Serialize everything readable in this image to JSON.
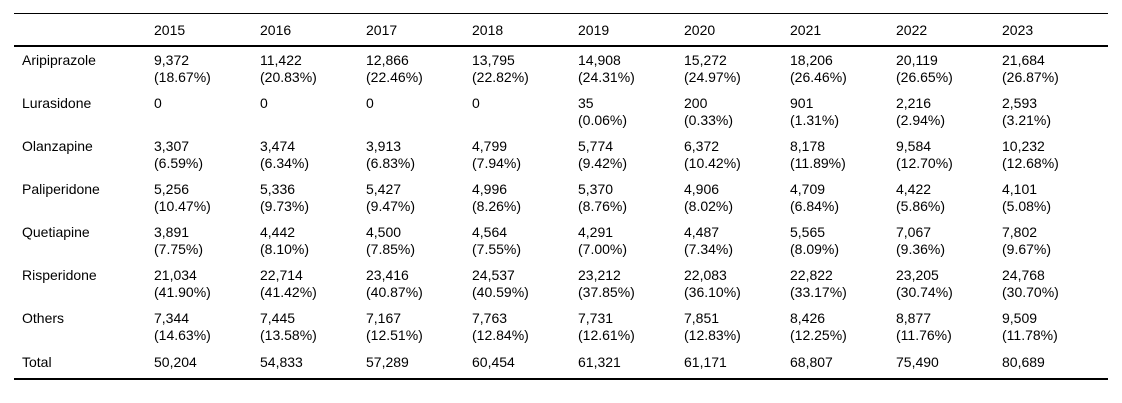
{
  "table": {
    "corner_label": "",
    "years": [
      "2015",
      "2016",
      "2017",
      "2018",
      "2019",
      "2020",
      "2021",
      "2022",
      "2023"
    ],
    "rows": [
      {
        "label": "Aripiprazole",
        "values": [
          "9,372",
          "11,422",
          "12,866",
          "13,795",
          "14,908",
          "15,272",
          "18,206",
          "20,119",
          "21,684"
        ],
        "pcts": [
          "(18.67%)",
          "(20.83%)",
          "(22.46%)",
          "(22.82%)",
          "(24.31%)",
          "(24.97%)",
          "(26.46%)",
          "(26.65%)",
          "(26.87%)"
        ]
      },
      {
        "label": "Lurasidone",
        "values": [
          "0",
          "0",
          "0",
          "0",
          "35",
          "200",
          "901",
          "2,216",
          "2,593"
        ],
        "pcts": [
          "",
          "",
          "",
          "",
          "(0.06%)",
          "(0.33%)",
          "(1.31%)",
          "(2.94%)",
          "(3.21%)"
        ]
      },
      {
        "label": "Olanzapine",
        "values": [
          "3,307",
          "3,474",
          "3,913",
          "4,799",
          "5,774",
          "6,372",
          "8,178",
          "9,584",
          "10,232"
        ],
        "pcts": [
          "(6.59%)",
          "(6.34%)",
          "(6.83%)",
          "(7.94%)",
          "(9.42%)",
          "(10.42%)",
          "(11.89%)",
          "(12.70%)",
          "(12.68%)"
        ]
      },
      {
        "label": "Paliperidone",
        "values": [
          "5,256",
          "5,336",
          "5,427",
          "4,996",
          "5,370",
          "4,906",
          "4,709",
          "4,422",
          "4,101"
        ],
        "pcts": [
          "(10.47%)",
          "(9.73%)",
          "(9.47%)",
          "(8.26%)",
          "(8.76%)",
          "(8.02%)",
          "(6.84%)",
          "(5.86%)",
          "(5.08%)"
        ]
      },
      {
        "label": "Quetiapine",
        "values": [
          "3,891",
          "4,442",
          "4,500",
          "4,564",
          "4,291",
          "4,487",
          "5,565",
          "7,067",
          "7,802"
        ],
        "pcts": [
          "(7.75%)",
          "(8.10%)",
          "(7.85%)",
          "(7.55%)",
          "(7.00%)",
          "(7.34%)",
          "(8.09%)",
          "(9.36%)",
          "(9.67%)"
        ]
      },
      {
        "label": "Risperidone",
        "values": [
          "21,034",
          "22,714",
          "23,416",
          "24,537",
          "23,212",
          "22,083",
          "22,822",
          "23,205",
          "24,768"
        ],
        "pcts": [
          "(41.90%)",
          "(41.42%)",
          "(40.87%)",
          "(40.59%)",
          "(37.85%)",
          "(36.10%)",
          "(33.17%)",
          "(30.74%)",
          "(30.70%)"
        ]
      },
      {
        "label": "Others",
        "values": [
          "7,344",
          "7,445",
          "7,167",
          "7,763",
          "7,731",
          "7,851",
          "8,426",
          "8,877",
          "9,509"
        ],
        "pcts": [
          "(14.63%)",
          "(13.58%)",
          "(12.51%)",
          "(12.84%)",
          "(12.61%)",
          "(12.83%)",
          "(12.25%)",
          "(11.76%)",
          "(11.78%)"
        ]
      },
      {
        "label": "Total",
        "values": [
          "50,204",
          "54,833",
          "57,289",
          "60,454",
          "61,321",
          "61,171",
          "68,807",
          "75,490",
          "80,689"
        ]
      }
    ],
    "colors": {
      "background": "#ffffff",
      "text": "#000000",
      "rule": "#000000"
    }
  }
}
